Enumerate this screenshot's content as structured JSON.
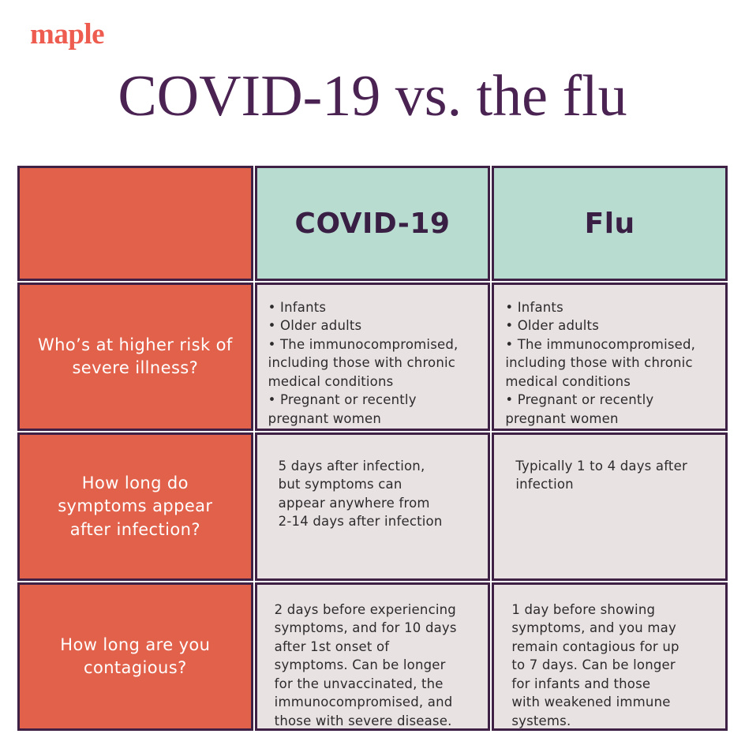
{
  "brand": {
    "logo_text": "maple"
  },
  "title": "COVID-19 vs. the flu",
  "table": {
    "column_headers": {
      "covid": "COVID-19",
      "flu": "Flu"
    },
    "rows": [
      {
        "question": "Who’s at higher risk of\nsevere illness?",
        "covid": "• Infants\n• Older adults\n• The immunocompromised,\nincluding those with chronic\nmedical conditions\n• Pregnant or recently\npregnant women",
        "flu": "• Infants\n• Older adults\n• The immunocompromised,\nincluding those with chronic\nmedical conditions\n• Pregnant or recently\npregnant women"
      },
      {
        "question": "How long do\nsymptoms appear\nafter infection?",
        "covid": "5 days after infection,\nbut symptoms can\nappear anywhere from\n2-14 days after infection",
        "flu": "Typically 1 to 4 days after\ninfection"
      },
      {
        "question": "How long are you\ncontagious?",
        "covid": "2 days before experiencing\nsymptoms, and for 10 days\nafter 1st onset of\nsymptoms. Can be longer\nfor the unvaccinated, the\nimmunocompromised, and\nthose with severe disease.",
        "flu": "1 day before showing\nsymptoms, and you may\nremain contagious for up\nto 7 days. Can be longer\nfor infants and those\nwith weakened immune\nsystems."
      }
    ]
  },
  "colors": {
    "coral": "#E1614B",
    "logo-red": "#EE5B4F",
    "mint": "#B9DCD0",
    "cell-grey": "#E8E2E3",
    "border-purple": "#3E2145",
    "title-purple": "#4B2353",
    "header-text": "#3A1F44",
    "body-text": "#2D2A2C"
  }
}
